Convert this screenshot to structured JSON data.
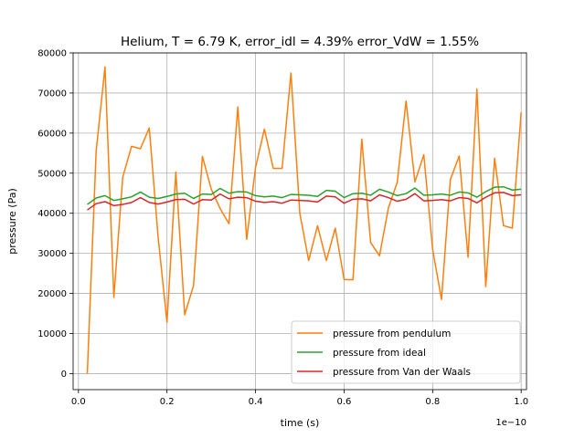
{
  "chart_data": {
    "type": "line",
    "title": "Helium, T = 6.79 K, error_idl = 4.39% error_VdW = 1.55%",
    "xlabel": "time (s)",
    "ylabel": "pressure (Pa)",
    "x_offset_label": "1e−10",
    "xlim": [
      -0.012,
      1.012
    ],
    "ylim": [
      -4000,
      80000
    ],
    "xticks": [
      0.0,
      0.2,
      0.4,
      0.6,
      0.8,
      1.0
    ],
    "xtick_labels": [
      "0.0",
      "0.2",
      "0.4",
      "0.6",
      "0.8",
      "1.0"
    ],
    "yticks": [
      0,
      10000,
      20000,
      30000,
      40000,
      50000,
      60000,
      70000,
      80000
    ],
    "ytick_labels": [
      "0",
      "10000",
      "20000",
      "30000",
      "40000",
      "50000",
      "60000",
      "70000",
      "80000"
    ],
    "grid": true,
    "legend_position": "lower-right",
    "x": [
      0.02,
      0.04,
      0.06,
      0.08,
      0.1,
      0.12,
      0.14,
      0.16,
      0.18,
      0.2,
      0.22,
      0.24,
      0.26,
      0.28,
      0.3,
      0.32,
      0.34,
      0.36,
      0.38,
      0.4,
      0.42,
      0.44,
      0.46,
      0.48,
      0.5,
      0.52,
      0.54,
      0.56,
      0.58,
      0.6,
      0.62,
      0.64,
      0.66,
      0.68,
      0.7,
      0.72,
      0.74,
      0.76,
      0.78,
      0.8,
      0.82,
      0.84,
      0.86,
      0.88,
      0.9,
      0.92,
      0.94,
      0.96,
      0.98,
      1.0
    ],
    "series": [
      {
        "name": "pressure from pendulum",
        "color": "#ff7f0e",
        "values": [
          0,
          55500,
          76500,
          19000,
          49000,
          56700,
          56100,
          61300,
          34000,
          12800,
          50300,
          14700,
          22000,
          54200,
          46000,
          41200,
          37400,
          66500,
          33500,
          51400,
          61000,
          51200,
          51200,
          75000,
          40000,
          28200,
          36900,
          28200,
          36300,
          23500,
          23400,
          58500,
          32700,
          29400,
          41300,
          47700,
          68000,
          47800,
          54600,
          31000,
          18500,
          48400,
          54300,
          29000,
          71000,
          21700,
          53700,
          36900,
          36300,
          65200
        ]
      },
      {
        "name": "pressure from ideal",
        "color": "#2ca02c",
        "values": [
          42200,
          43800,
          44400,
          43200,
          43600,
          44100,
          45300,
          44000,
          43700,
          44200,
          44800,
          45000,
          43700,
          44800,
          44700,
          46200,
          45000,
          45400,
          45300,
          44400,
          44100,
          44300,
          43900,
          44700,
          44600,
          44500,
          44200,
          45700,
          45500,
          43900,
          44900,
          45000,
          44500,
          46000,
          45300,
          44400,
          44900,
          46300,
          44500,
          44600,
          44800,
          44500,
          45300,
          45100,
          44000,
          45400,
          46500,
          46600,
          45800,
          46000
        ]
      },
      {
        "name": "pressure from Van der Waals",
        "color": "#d62728",
        "values": [
          40800,
          42400,
          42900,
          41900,
          42200,
          42700,
          43900,
          42700,
          42300,
          42800,
          43400,
          43500,
          42300,
          43400,
          43300,
          44800,
          43600,
          44000,
          43900,
          43000,
          42700,
          42900,
          42500,
          43300,
          43200,
          43100,
          42800,
          44300,
          44100,
          42500,
          43500,
          43600,
          43100,
          44600,
          43900,
          43000,
          43500,
          44900,
          43100,
          43200,
          43400,
          43100,
          43900,
          43700,
          42600,
          44000,
          45100,
          45200,
          44400,
          44600
        ]
      }
    ]
  }
}
